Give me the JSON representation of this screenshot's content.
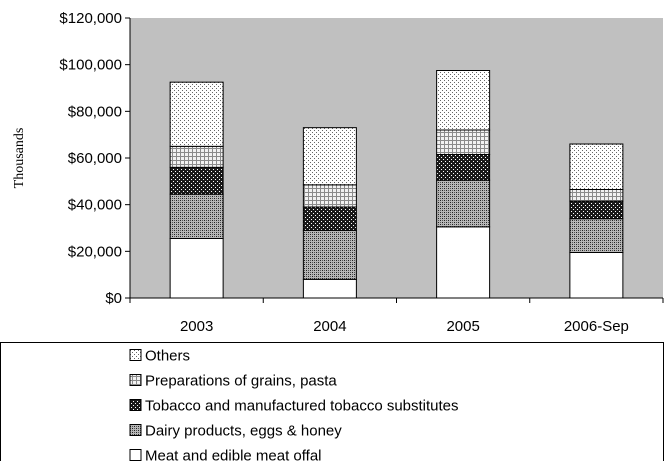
{
  "chart_data": {
    "type": "bar",
    "stacked": true,
    "categories": [
      "2003",
      "2004",
      "2005",
      "2006-Sep"
    ],
    "series": [
      {
        "name": "Meat and edible meat offal",
        "values": [
          25500,
          8000,
          30500,
          19500
        ],
        "pattern": "white"
      },
      {
        "name": "Dairy products, eggs & honey",
        "values": [
          19000,
          21000,
          20000,
          14500
        ],
        "pattern": "crosshatch"
      },
      {
        "name": "Tobacco and manufactured tobacco substitutes",
        "values": [
          11500,
          10000,
          11000,
          7500
        ],
        "pattern": "dark"
      },
      {
        "name": "Preparations of grains, pasta",
        "values": [
          9000,
          9500,
          10500,
          5000
        ],
        "pattern": "light-grid"
      },
      {
        "name": "Others",
        "values": [
          27500,
          24500,
          25500,
          19500
        ],
        "pattern": "dots"
      }
    ],
    "xlabel": "",
    "ylabel": "Thousands",
    "ylim": [
      0,
      120000
    ],
    "yticks": [
      "$0",
      "$20,000",
      "$40,000",
      "$60,000",
      "$80,000",
      "$100,000",
      "$120,000"
    ],
    "ytick_values": [
      0,
      20000,
      40000,
      60000,
      80000,
      100000,
      120000
    ],
    "plot_background": "#c0c0c0",
    "legend_position": "bottom",
    "legend_order": [
      4,
      3,
      2,
      1,
      0
    ],
    "grid": false
  }
}
